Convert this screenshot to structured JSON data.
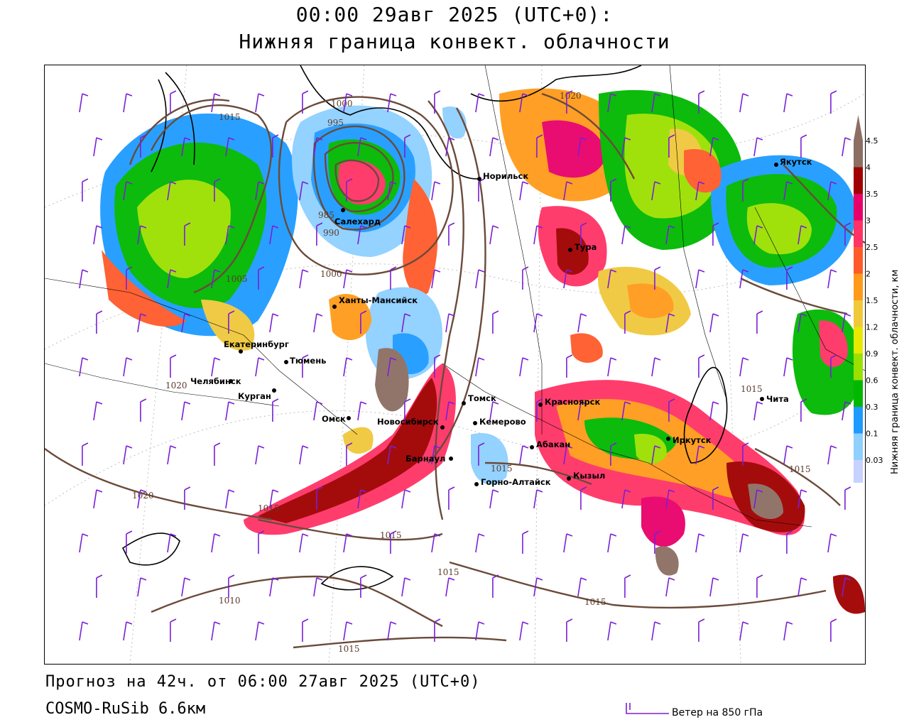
{
  "header": {
    "line1": "00:00 29авг 2025 (UTC+0):",
    "line2": "Нижняя граница конвект. облачности"
  },
  "footer": {
    "forecast": "Прогноз на 42ч. от 06:00 27авг 2025 (UTC+0)",
    "model": "COSMO-RuSib 6.6км",
    "wind_legend": "Ветер на 850 гПа"
  },
  "legend": {
    "title": "Нижняя граница конвект. облачности, км",
    "ticks": [
      "4.5",
      "4",
      "3.5",
      "3",
      "2.5",
      "2",
      "1.5",
      "1.2",
      "0.9",
      "0.6",
      "0.3",
      "0.1",
      "0.03"
    ],
    "colors": [
      "#8d6e63",
      "#a00000",
      "#e8006a",
      "#ff3366",
      "#ff5a2a",
      "#ff9a1a",
      "#f0c83a",
      "#e8e800",
      "#9be000",
      "#00b800",
      "#1e9bff",
      "#8fd0ff",
      "#c8d2ff"
    ]
  },
  "cities": [
    {
      "name": "Норильск"
    },
    {
      "name": "Якутск"
    },
    {
      "name": "Салехард"
    },
    {
      "name": "Тура"
    },
    {
      "name": "Ханты-Мансийск"
    },
    {
      "name": "Екатеринбург"
    },
    {
      "name": "Тюмень"
    },
    {
      "name": "Челябинск"
    },
    {
      "name": "Курган"
    },
    {
      "name": "Томск"
    },
    {
      "name": "Красноярск"
    },
    {
      "name": "Омск"
    },
    {
      "name": "Новосибирск"
    },
    {
      "name": "Кемерово"
    },
    {
      "name": "Абакан"
    },
    {
      "name": "Иркутск"
    },
    {
      "name": "Чита"
    },
    {
      "name": "Барнаул"
    },
    {
      "name": "Кызыл"
    },
    {
      "name": "Горно-Алтайск"
    }
  ],
  "isobars": [
    "1015",
    "1020",
    "1005",
    "1000",
    "995",
    "990",
    "985",
    "1000",
    "1020",
    "1020",
    "1015",
    "1015",
    "1015",
    "1015",
    "1015",
    "1010",
    "1015",
    "1015",
    "1015"
  ]
}
